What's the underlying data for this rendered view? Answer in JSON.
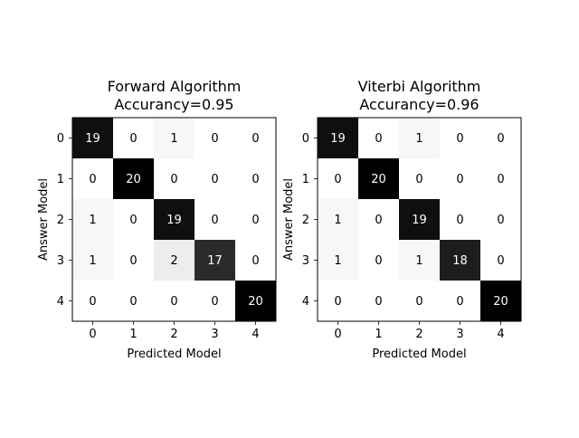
{
  "chart_data": [
    {
      "type": "heatmap",
      "title": "Forward Algorithm\nAccurancy=0.95",
      "xlabel": "Predicted Model",
      "ylabel": "Answer Model",
      "x_ticks": [
        "0",
        "1",
        "2",
        "3",
        "4"
      ],
      "y_ticks": [
        "0",
        "1",
        "2",
        "3",
        "4"
      ],
      "colormap": "Greys",
      "value_range": [
        0,
        20
      ],
      "matrix": [
        [
          19,
          0,
          1,
          0,
          0
        ],
        [
          0,
          20,
          0,
          0,
          0
        ],
        [
          1,
          0,
          19,
          0,
          0
        ],
        [
          1,
          0,
          2,
          17,
          0
        ],
        [
          0,
          0,
          0,
          0,
          20
        ]
      ]
    },
    {
      "type": "heatmap",
      "title": "Viterbi Algorithm\nAccurancy=0.96",
      "xlabel": "Predicted Model",
      "ylabel": "Answer Model",
      "x_ticks": [
        "0",
        "1",
        "2",
        "3",
        "4"
      ],
      "y_ticks": [
        "0",
        "1",
        "2",
        "3",
        "4"
      ],
      "colormap": "Greys",
      "value_range": [
        0,
        20
      ],
      "matrix": [
        [
          19,
          0,
          1,
          0,
          0
        ],
        [
          0,
          20,
          0,
          0,
          0
        ],
        [
          1,
          0,
          19,
          0,
          0
        ],
        [
          1,
          0,
          1,
          18,
          0
        ],
        [
          0,
          0,
          0,
          0,
          20
        ]
      ]
    }
  ]
}
